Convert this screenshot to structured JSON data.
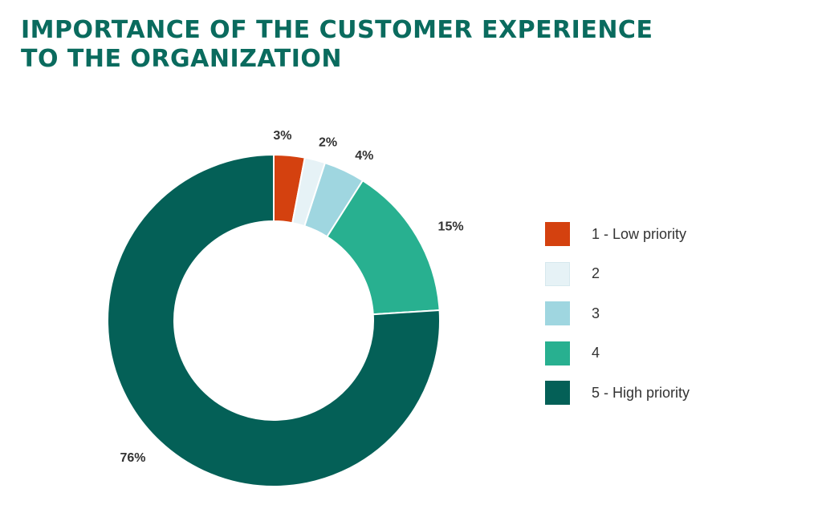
{
  "chart_data": {
    "type": "pie",
    "variant": "donut",
    "title_lines": [
      "IMPORTANCE OF THE CUSTOMER EXPERIENCE",
      "TO THE ORGANIZATION"
    ],
    "slices": [
      {
        "label": "1 - Low priority",
        "value": 3,
        "value_label": "3%",
        "color": "#d4410f"
      },
      {
        "label": "2",
        "value": 2,
        "value_label": "2%",
        "color": "#e6f2f6"
      },
      {
        "label": "3",
        "value": 4,
        "value_label": "4%",
        "color": "#9fd6e0"
      },
      {
        "label": "4",
        "value": 15,
        "value_label": "15%",
        "color": "#28b090"
      },
      {
        "label": "5 - High priority",
        "value": 76,
        "value_label": "76%",
        "color": "#046057"
      }
    ],
    "legend_position": "right"
  }
}
